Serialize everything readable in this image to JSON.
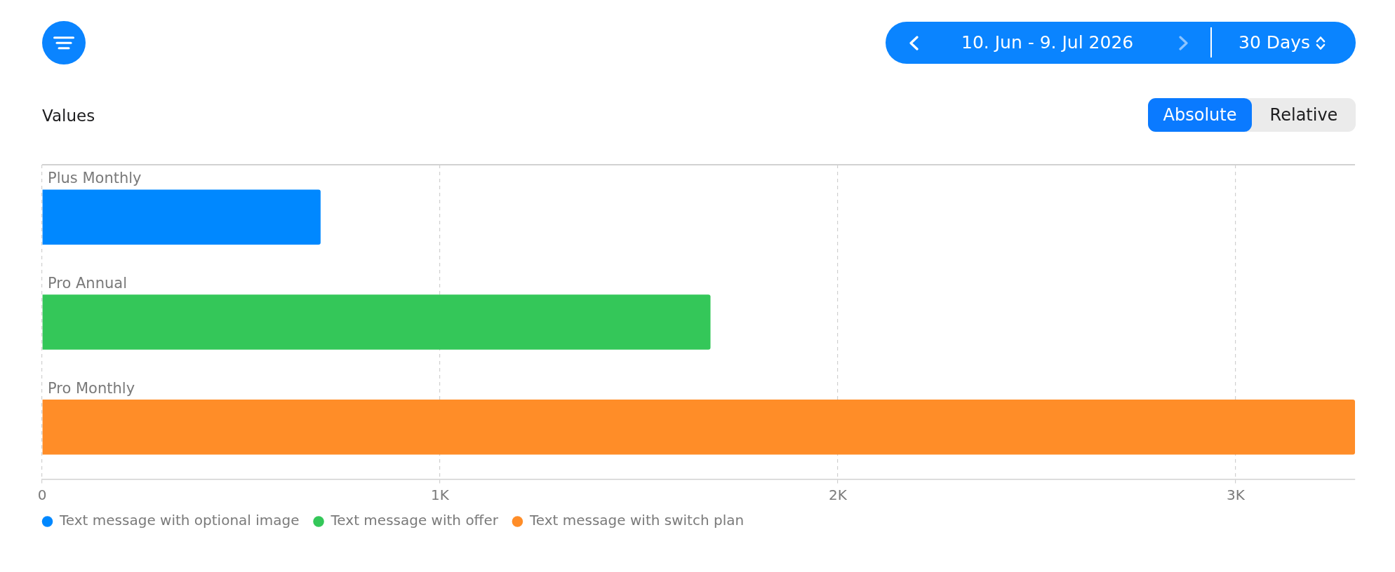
{
  "chart_data": {
    "type": "bar",
    "orientation": "horizontal",
    "stacked": true,
    "title": "Values",
    "categories": [
      "Plus Monthly",
      "Pro Annual",
      "Pro Monthly"
    ],
    "series": [
      {
        "name": "Text message with optional image",
        "color": "#0088ff",
        "values": [
          700,
          null,
          null
        ]
      },
      {
        "name": "Text message with offer",
        "color": "#34c759",
        "values": [
          null,
          1680,
          null
        ]
      },
      {
        "name": "Text message with switch plan",
        "color": "#ff8d28",
        "values": [
          null,
          null,
          3300
        ]
      }
    ],
    "xlim": [
      0,
      3300
    ],
    "xticks": [
      0,
      {
        "value": 1000,
        "label": "1K"
      },
      {
        "value": 2000,
        "label": "2K"
      },
      {
        "value": 3000,
        "label": "3K"
      }
    ],
    "grid": "x",
    "legend": "bottom left",
    "annotations": [
      "10. Jun - 9. Jul 2026",
      "30 Days",
      "Absolute",
      "Relative"
    ]
  }
}
